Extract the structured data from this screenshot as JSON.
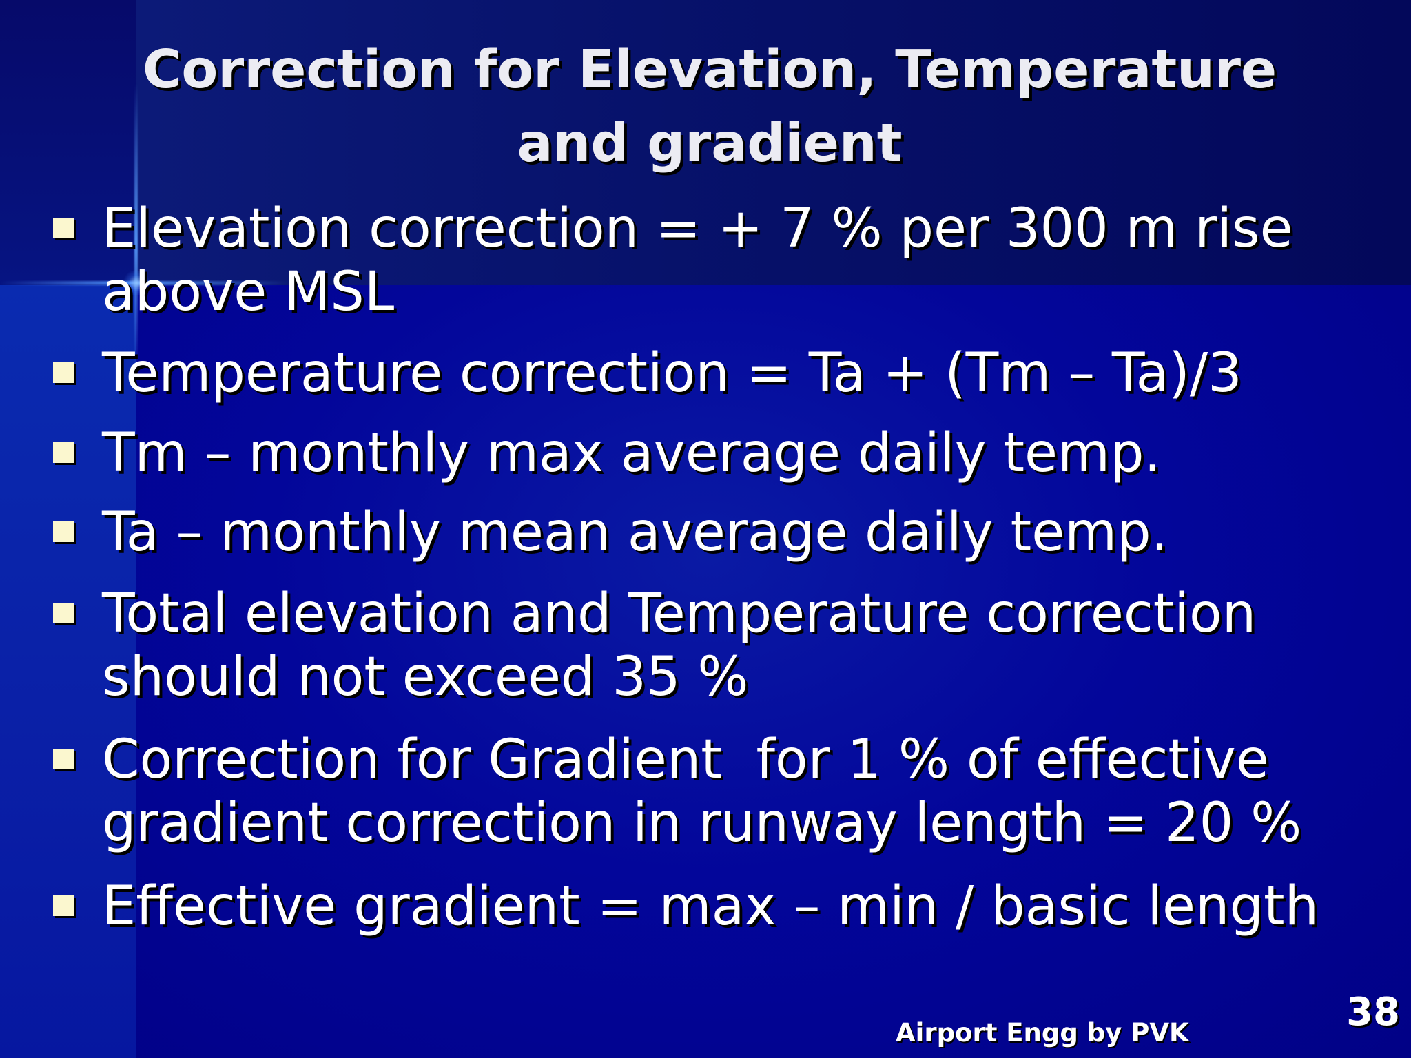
{
  "slide": {
    "title_lines": [
      "Correction for Elevation, Temperature",
      "and gradient"
    ],
    "bullets": [
      {
        "lines": [
          "Elevation correction = + 7 % per 300 m rise",
          "above MSL"
        ]
      },
      {
        "lines": [
          "Temperature correction = Ta + (Tm – Ta)/3"
        ]
      },
      {
        "lines": [
          "Tm – monthly max average daily temp."
        ]
      },
      {
        "lines": [
          "Ta – monthly mean average daily temp."
        ]
      },
      {
        "lines": [
          "Total elevation and Temperature correction",
          "should not exceed 35 %"
        ]
      },
      {
        "lines": [
          "Correction for Gradient  for 1 % of effective",
          "gradient correction in runway length = 20 %"
        ]
      },
      {
        "lines": [
          "Effective gradient = max – min / basic length"
        ]
      }
    ],
    "footer": "Airport Engg by PVK",
    "page_number": "38"
  },
  "colors": {
    "background": "#02028c",
    "title": "#ececf3",
    "text": "#ffffff",
    "bullet_marker": "#fbf7cf"
  }
}
